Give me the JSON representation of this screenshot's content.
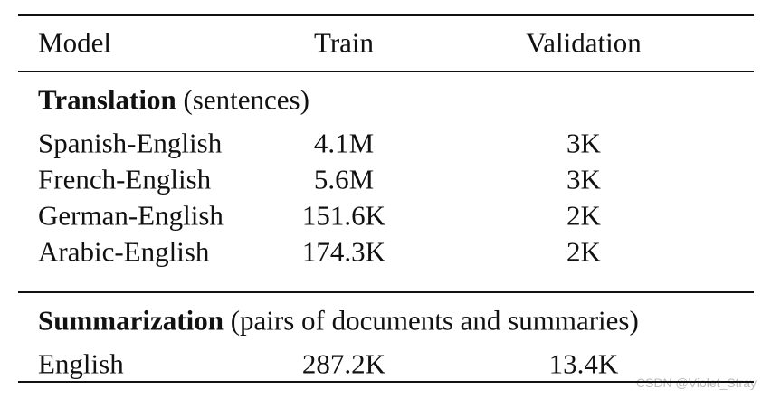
{
  "table": {
    "header": [
      "Model",
      "Train",
      "Validation"
    ],
    "sections": [
      {
        "title": "Translation",
        "note": "(sentences)",
        "rows": [
          [
            "Spanish-English",
            "4.1M",
            "3K"
          ],
          [
            "French-English",
            "5.6M",
            "3K"
          ],
          [
            "German-English",
            "151.6K",
            "2K"
          ],
          [
            "Arabic-English",
            "174.3K",
            "2K"
          ]
        ]
      },
      {
        "title": "Summarization",
        "note": "(pairs of documents and summaries)",
        "rows": [
          [
            "English",
            "287.2K",
            "13.4K"
          ]
        ]
      }
    ]
  },
  "watermark": "CSDN @Violet_Stray"
}
